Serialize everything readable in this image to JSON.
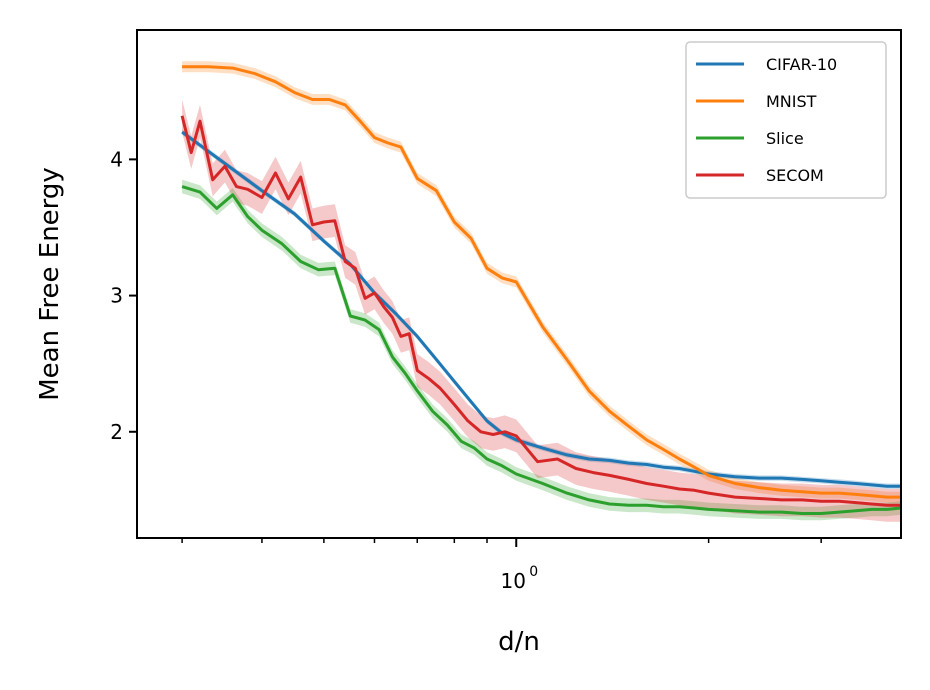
{
  "chart_data": {
    "type": "line",
    "xlabel": "d/n",
    "ylabel": "Mean Free Energy",
    "xscale": "log",
    "xlim": [
      0.255,
      4.0
    ],
    "ylim": [
      1.22,
      4.95
    ],
    "yticks": [
      2,
      3,
      4
    ],
    "ytick_labels": [
      "2",
      "3",
      "4"
    ],
    "xticks_major": [
      1.0
    ],
    "xtick_major_labels": [
      "10",
      "0"
    ],
    "xticks_minor": [
      0.3,
      0.4,
      0.5,
      0.6,
      0.7,
      0.8,
      0.9,
      2,
      3
    ],
    "grid": false,
    "legend": "top-right",
    "series": [
      {
        "name": "CIFAR-10",
        "color": "#1f77b4",
        "x": [
          0.3,
          0.35,
          0.4,
          0.45,
          0.5,
          0.55,
          0.6,
          0.65,
          0.7,
          0.75,
          0.8,
          0.85,
          0.9,
          0.95,
          1.0,
          1.1,
          1.2,
          1.3,
          1.4,
          1.5,
          1.6,
          1.7,
          1.8,
          1.9,
          2.0,
          2.2,
          2.4,
          2.6,
          2.8,
          3.0,
          3.2,
          3.4,
          3.6,
          3.8,
          4.0
        ],
        "y": [
          4.2,
          3.97,
          3.77,
          3.6,
          3.4,
          3.23,
          3.02,
          2.86,
          2.7,
          2.53,
          2.37,
          2.22,
          2.08,
          1.99,
          1.94,
          1.88,
          1.83,
          1.8,
          1.79,
          1.77,
          1.76,
          1.74,
          1.73,
          1.71,
          1.69,
          1.67,
          1.66,
          1.66,
          1.65,
          1.64,
          1.63,
          1.62,
          1.61,
          1.6,
          1.6
        ],
        "band": 0.02
      },
      {
        "name": "MNIST",
        "color": "#ff7f0e",
        "x": [
          0.3,
          0.33,
          0.36,
          0.39,
          0.42,
          0.45,
          0.48,
          0.51,
          0.54,
          0.57,
          0.6,
          0.63,
          0.66,
          0.7,
          0.75,
          0.8,
          0.85,
          0.9,
          0.95,
          1.0,
          1.1,
          1.2,
          1.3,
          1.4,
          1.5,
          1.6,
          1.7,
          1.8,
          1.9,
          2.0,
          2.2,
          2.4,
          2.6,
          2.8,
          3.0,
          3.2,
          3.4,
          3.6,
          3.8,
          4.0
        ],
        "y": [
          4.68,
          4.68,
          4.67,
          4.63,
          4.57,
          4.49,
          4.44,
          4.44,
          4.4,
          4.28,
          4.16,
          4.12,
          4.09,
          3.86,
          3.77,
          3.54,
          3.42,
          3.2,
          3.13,
          3.1,
          2.77,
          2.53,
          2.3,
          2.15,
          2.04,
          1.94,
          1.87,
          1.8,
          1.74,
          1.68,
          1.62,
          1.59,
          1.57,
          1.56,
          1.55,
          1.55,
          1.54,
          1.53,
          1.52,
          1.52
        ],
        "band": 0.04
      },
      {
        "name": "Slice",
        "color": "#2ca02c",
        "x": [
          0.3,
          0.32,
          0.34,
          0.36,
          0.38,
          0.4,
          0.43,
          0.46,
          0.49,
          0.52,
          0.55,
          0.58,
          0.61,
          0.64,
          0.67,
          0.7,
          0.74,
          0.78,
          0.82,
          0.86,
          0.9,
          0.95,
          1.0,
          1.1,
          1.2,
          1.3,
          1.4,
          1.5,
          1.6,
          1.7,
          1.8,
          1.9,
          2.0,
          2.2,
          2.4,
          2.6,
          2.8,
          3.0,
          3.2,
          3.4,
          3.6,
          3.8,
          4.0
        ],
        "y": [
          3.8,
          3.76,
          3.64,
          3.74,
          3.58,
          3.48,
          3.38,
          3.25,
          3.19,
          3.2,
          2.85,
          2.82,
          2.75,
          2.55,
          2.43,
          2.3,
          2.15,
          2.05,
          1.93,
          1.88,
          1.8,
          1.75,
          1.69,
          1.62,
          1.55,
          1.5,
          1.47,
          1.46,
          1.46,
          1.45,
          1.45,
          1.44,
          1.43,
          1.42,
          1.41,
          1.41,
          1.4,
          1.4,
          1.41,
          1.42,
          1.43,
          1.43,
          1.44
        ],
        "band": 0.05
      },
      {
        "name": "SECOM",
        "color": "#d62728",
        "x": [
          0.3,
          0.31,
          0.32,
          0.335,
          0.35,
          0.365,
          0.38,
          0.4,
          0.42,
          0.44,
          0.46,
          0.48,
          0.5,
          0.52,
          0.54,
          0.56,
          0.58,
          0.6,
          0.62,
          0.64,
          0.66,
          0.68,
          0.7,
          0.73,
          0.76,
          0.8,
          0.84,
          0.88,
          0.92,
          0.96,
          1.0,
          1.08,
          1.16,
          1.24,
          1.32,
          1.4,
          1.5,
          1.6,
          1.7,
          1.8,
          1.9,
          2.0,
          2.2,
          2.4,
          2.6,
          2.8,
          3.0,
          3.2,
          3.4,
          3.6,
          3.8,
          4.0
        ],
        "y": [
          4.32,
          4.05,
          4.28,
          3.85,
          3.95,
          3.8,
          3.78,
          3.72,
          3.9,
          3.71,
          3.87,
          3.52,
          3.54,
          3.55,
          3.25,
          3.2,
          2.98,
          3.02,
          2.92,
          2.84,
          2.7,
          2.72,
          2.45,
          2.39,
          2.32,
          2.2,
          2.08,
          2.0,
          1.98,
          2.0,
          1.97,
          1.78,
          1.8,
          1.73,
          1.7,
          1.68,
          1.65,
          1.62,
          1.6,
          1.58,
          1.57,
          1.55,
          1.52,
          1.51,
          1.5,
          1.5,
          1.49,
          1.49,
          1.48,
          1.47,
          1.46,
          1.46
        ],
        "band": 0.12
      }
    ]
  }
}
